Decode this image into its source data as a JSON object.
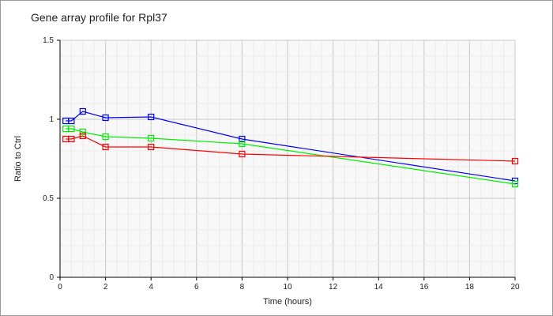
{
  "chart_data": {
    "type": "line",
    "title": "Gene array profile for Rpl37",
    "xlabel": "Time (hours)",
    "ylabel": "Ratio to Ctrl",
    "xlim": [
      0,
      20
    ],
    "ylim": [
      0,
      1.5
    ],
    "xticks": [
      "0",
      "2",
      "4",
      "6",
      "8",
      "10",
      "12",
      "14",
      "16",
      "18",
      "20"
    ],
    "yticks": [
      "0",
      "0.5",
      "1",
      "1.5"
    ],
    "grid": true,
    "x": [
      0.25,
      0.5,
      1,
      2,
      4,
      8,
      20
    ],
    "series": [
      {
        "name": "blue",
        "color": "#0000ff",
        "values": [
          0.99,
          0.99,
          1.05,
          1.01,
          1.015,
          0.875,
          0.61
        ]
      },
      {
        "name": "green",
        "color": "#00ee00",
        "values": [
          0.94,
          0.94,
          0.92,
          0.89,
          0.88,
          0.845,
          0.59
        ]
      },
      {
        "name": "red",
        "color": "#ff0000",
        "values": [
          0.875,
          0.875,
          0.895,
          0.825,
          0.825,
          0.78,
          0.735
        ]
      }
    ]
  }
}
